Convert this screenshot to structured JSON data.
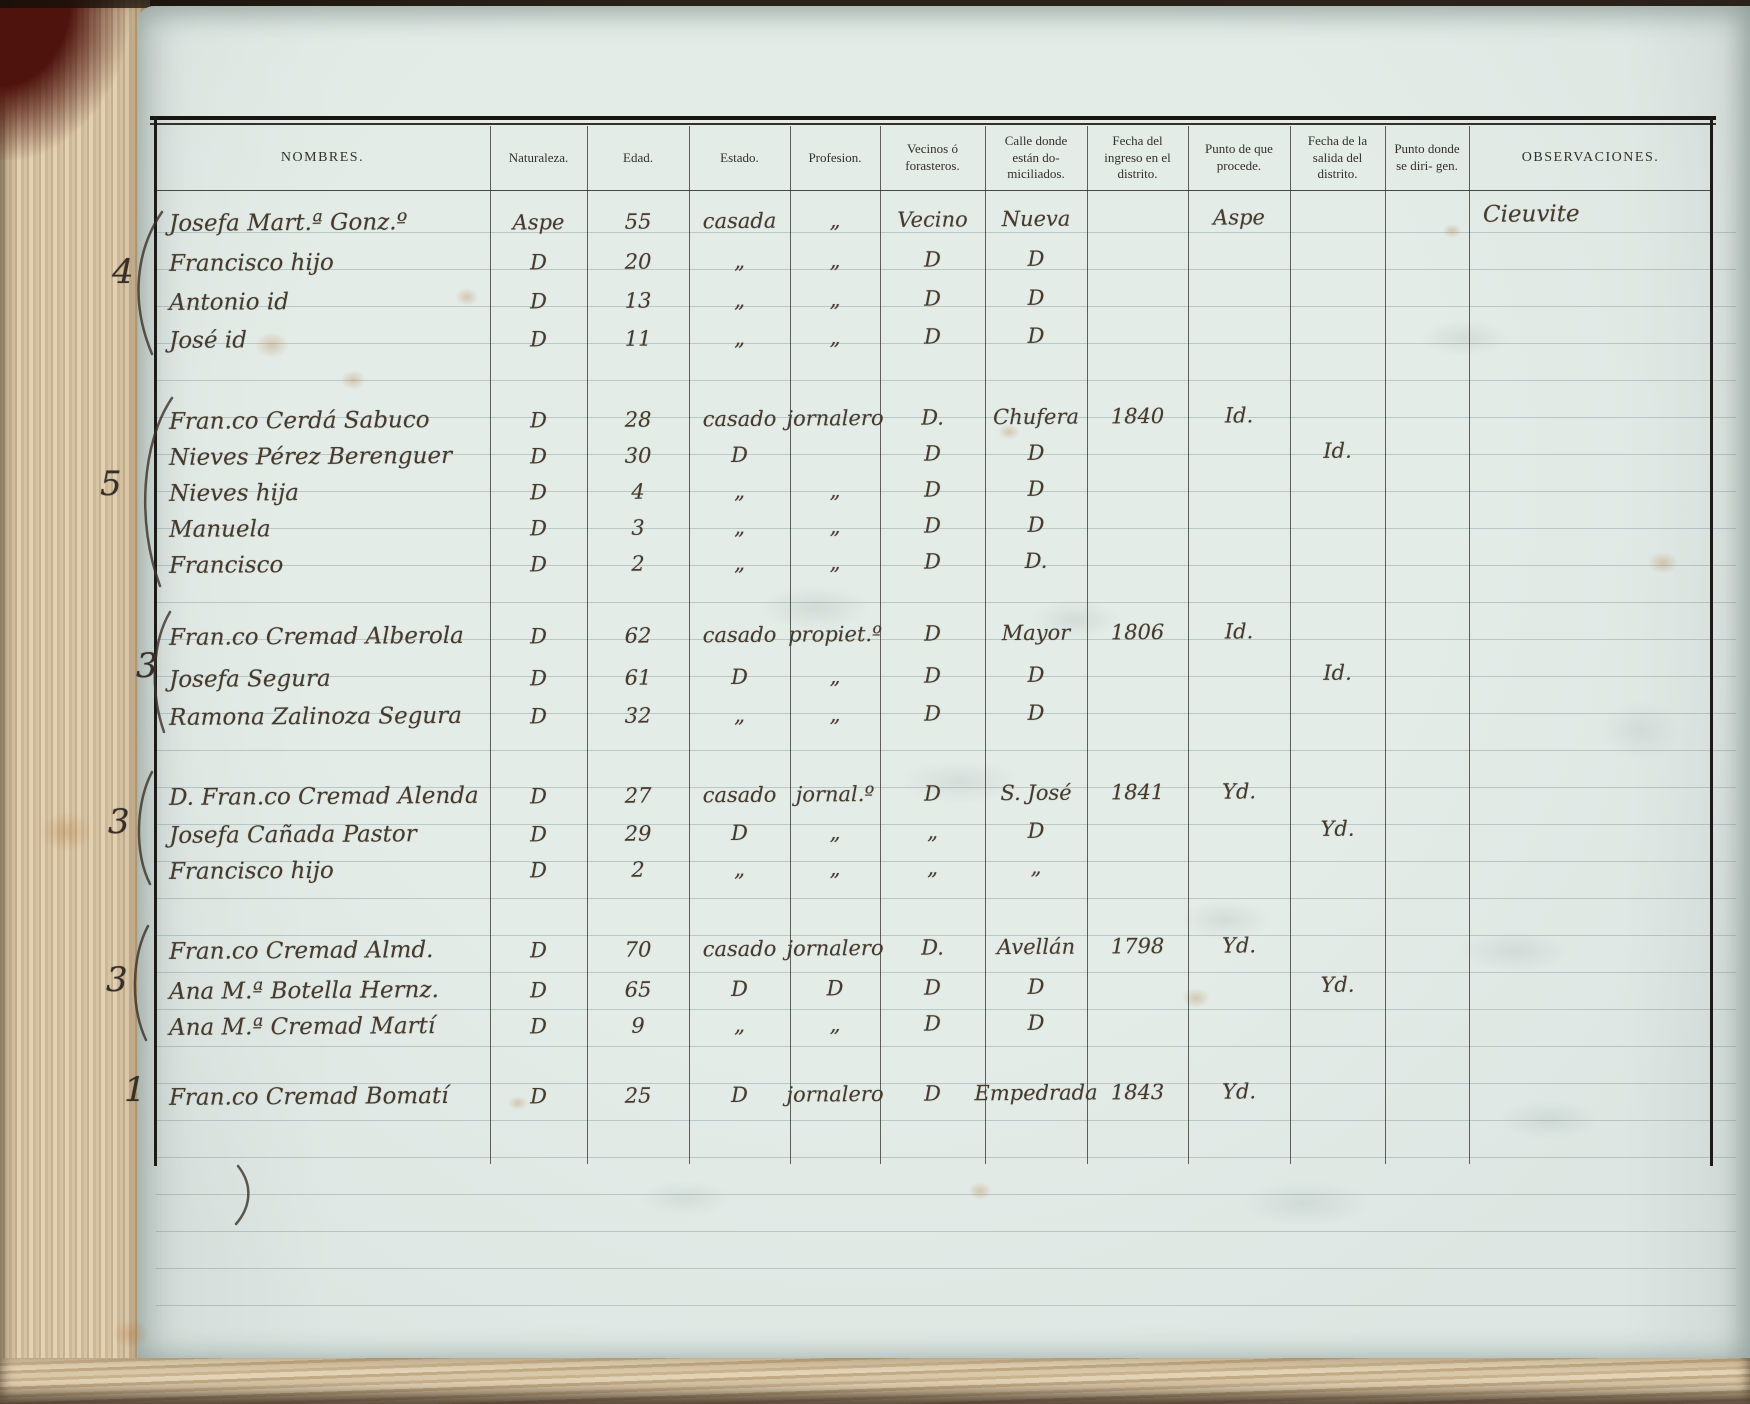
{
  "colors": {
    "page": "#dbe4e0",
    "ink": "#453a2c",
    "printed_text": "#34302a",
    "book_edges": "#d0ba98"
  },
  "margin_numbers": [
    "4",
    "5",
    "3",
    "3",
    "3",
    "1"
  ],
  "table": {
    "headers": [
      "NOMBRES.",
      "Naturaleza.",
      "Edad.",
      "Estado.",
      "Profesion.",
      "Vecinos ó forasteros.",
      "Calle donde están do- miciliados.",
      "Fecha del ingreso en el distrito.",
      "Punto de que procede.",
      "Fecha de la salida del distrito.",
      "Punto donde se diri- gen.",
      "OBSERVACIONES."
    ],
    "rows": [
      {
        "n": "Josefa Mart.ª Gonz.º",
        "nat": "Aspe",
        "edad": "55",
        "est": "casada",
        "prof": "„",
        "vec": "Vecino",
        "calle": "Nueva",
        "fi": "",
        "pp": "Aspe",
        "fs": "",
        "pd": "",
        "obs": "Cieuvite"
      },
      {
        "n": "Francisco hijo",
        "nat": "D",
        "edad": "20",
        "est": "„",
        "prof": "„",
        "vec": "D",
        "calle": "D",
        "fi": "",
        "pp": "",
        "fs": "",
        "pd": "",
        "obs": ""
      },
      {
        "n": "Antonio id",
        "nat": "D",
        "edad": "13",
        "est": "„",
        "prof": "„",
        "vec": "D",
        "calle": "D",
        "fi": "",
        "pp": "",
        "fs": "",
        "pd": "",
        "obs": ""
      },
      {
        "n": "José id",
        "nat": "D",
        "edad": "11",
        "est": "„",
        "prof": "„",
        "vec": "D",
        "calle": "D",
        "fi": "",
        "pp": "",
        "fs": "",
        "pd": "",
        "obs": ""
      },
      {
        "n": "Fran.co Cerdá Sabuco",
        "nat": "D",
        "edad": "28",
        "est": "casado",
        "prof": "jornalero",
        "vec": "D.",
        "calle": "Chufera",
        "fi": "1840",
        "pp": "Id.",
        "fs": "",
        "pd": "",
        "obs": ""
      },
      {
        "n": "Nieves Pérez Berenguer",
        "nat": "D",
        "edad": "30",
        "est": "D",
        "prof": "",
        "vec": "D",
        "calle": "D",
        "fi": "",
        "pp": "",
        "fs": "Id.",
        "pd": "",
        "obs": ""
      },
      {
        "n": "Nieves hija",
        "nat": "D",
        "edad": "4",
        "est": "„",
        "prof": "„",
        "vec": "D",
        "calle": "D",
        "fi": "",
        "pp": "",
        "fs": "",
        "pd": "",
        "obs": ""
      },
      {
        "n": "Manuela",
        "nat": "D",
        "edad": "3",
        "est": "„",
        "prof": "„",
        "vec": "D",
        "calle": "D",
        "fi": "",
        "pp": "",
        "fs": "",
        "pd": "",
        "obs": ""
      },
      {
        "n": "Francisco",
        "nat": "D",
        "edad": "2",
        "est": "„",
        "prof": "„",
        "vec": "D",
        "calle": "D.",
        "fi": "",
        "pp": "",
        "fs": "",
        "pd": "",
        "obs": ""
      },
      {
        "n": "Fran.co Cremad Alberola",
        "nat": "D",
        "edad": "62",
        "est": "casado",
        "prof": "propiet.º",
        "vec": "D",
        "calle": "Mayor",
        "fi": "1806",
        "pp": "Id.",
        "fs": "",
        "pd": "",
        "obs": ""
      },
      {
        "n": "Josefa Segura",
        "nat": "D",
        "edad": "61",
        "est": "D",
        "prof": "„",
        "vec": "D",
        "calle": "D",
        "fi": "",
        "pp": "",
        "fs": "Id.",
        "pd": "",
        "obs": ""
      },
      {
        "n": "Ramona Zalinoza Segura",
        "nat": "D",
        "edad": "32",
        "est": "„",
        "prof": "„",
        "vec": "D",
        "calle": "D",
        "fi": "",
        "pp": "",
        "fs": "",
        "pd": "",
        "obs": ""
      },
      {
        "n": "D. Fran.co Cremad Alenda",
        "nat": "D",
        "edad": "27",
        "est": "casado",
        "prof": "jornal.º",
        "vec": "D",
        "calle": "S. José",
        "fi": "1841",
        "pp": "Yd.",
        "fs": "",
        "pd": "",
        "obs": ""
      },
      {
        "n": "Josefa Cañada Pastor",
        "nat": "D",
        "edad": "29",
        "est": "D",
        "prof": "„",
        "vec": "„",
        "calle": "D",
        "fi": "",
        "pp": "",
        "fs": "Yd.",
        "pd": "",
        "obs": ""
      },
      {
        "n": "Francisco hijo",
        "nat": "D",
        "edad": "2",
        "est": "„",
        "prof": "„",
        "vec": "„",
        "calle": "„",
        "fi": "",
        "pp": "",
        "fs": "",
        "pd": "",
        "obs": ""
      },
      {
        "n": "Fran.co Cremad Almd.",
        "nat": "D",
        "edad": "70",
        "est": "casado",
        "prof": "jornalero",
        "vec": "D.",
        "calle": "Avellán",
        "fi": "1798",
        "pp": "Yd.",
        "fs": "",
        "pd": "",
        "obs": ""
      },
      {
        "n": "Ana M.ª Botella Hernz.",
        "nat": "D",
        "edad": "65",
        "est": "D",
        "prof": "D",
        "vec": "D",
        "calle": "D",
        "fi": "",
        "pp": "",
        "fs": "Yd.",
        "pd": "",
        "obs": ""
      },
      {
        "n": "Ana M.ª Cremad Martí",
        "nat": "D",
        "edad": "9",
        "est": "„",
        "prof": "„",
        "vec": "D",
        "calle": "D",
        "fi": "",
        "pp": "",
        "fs": "",
        "pd": "",
        "obs": ""
      },
      {
        "n": "Fran.co Cremad Bomatí",
        "nat": "D",
        "edad": "25",
        "est": "D",
        "prof": "jornalero",
        "vec": "D",
        "calle": "Empedrada",
        "fi": "1843",
        "pp": "Yd.",
        "fs": "",
        "pd": "",
        "obs": ""
      }
    ]
  }
}
